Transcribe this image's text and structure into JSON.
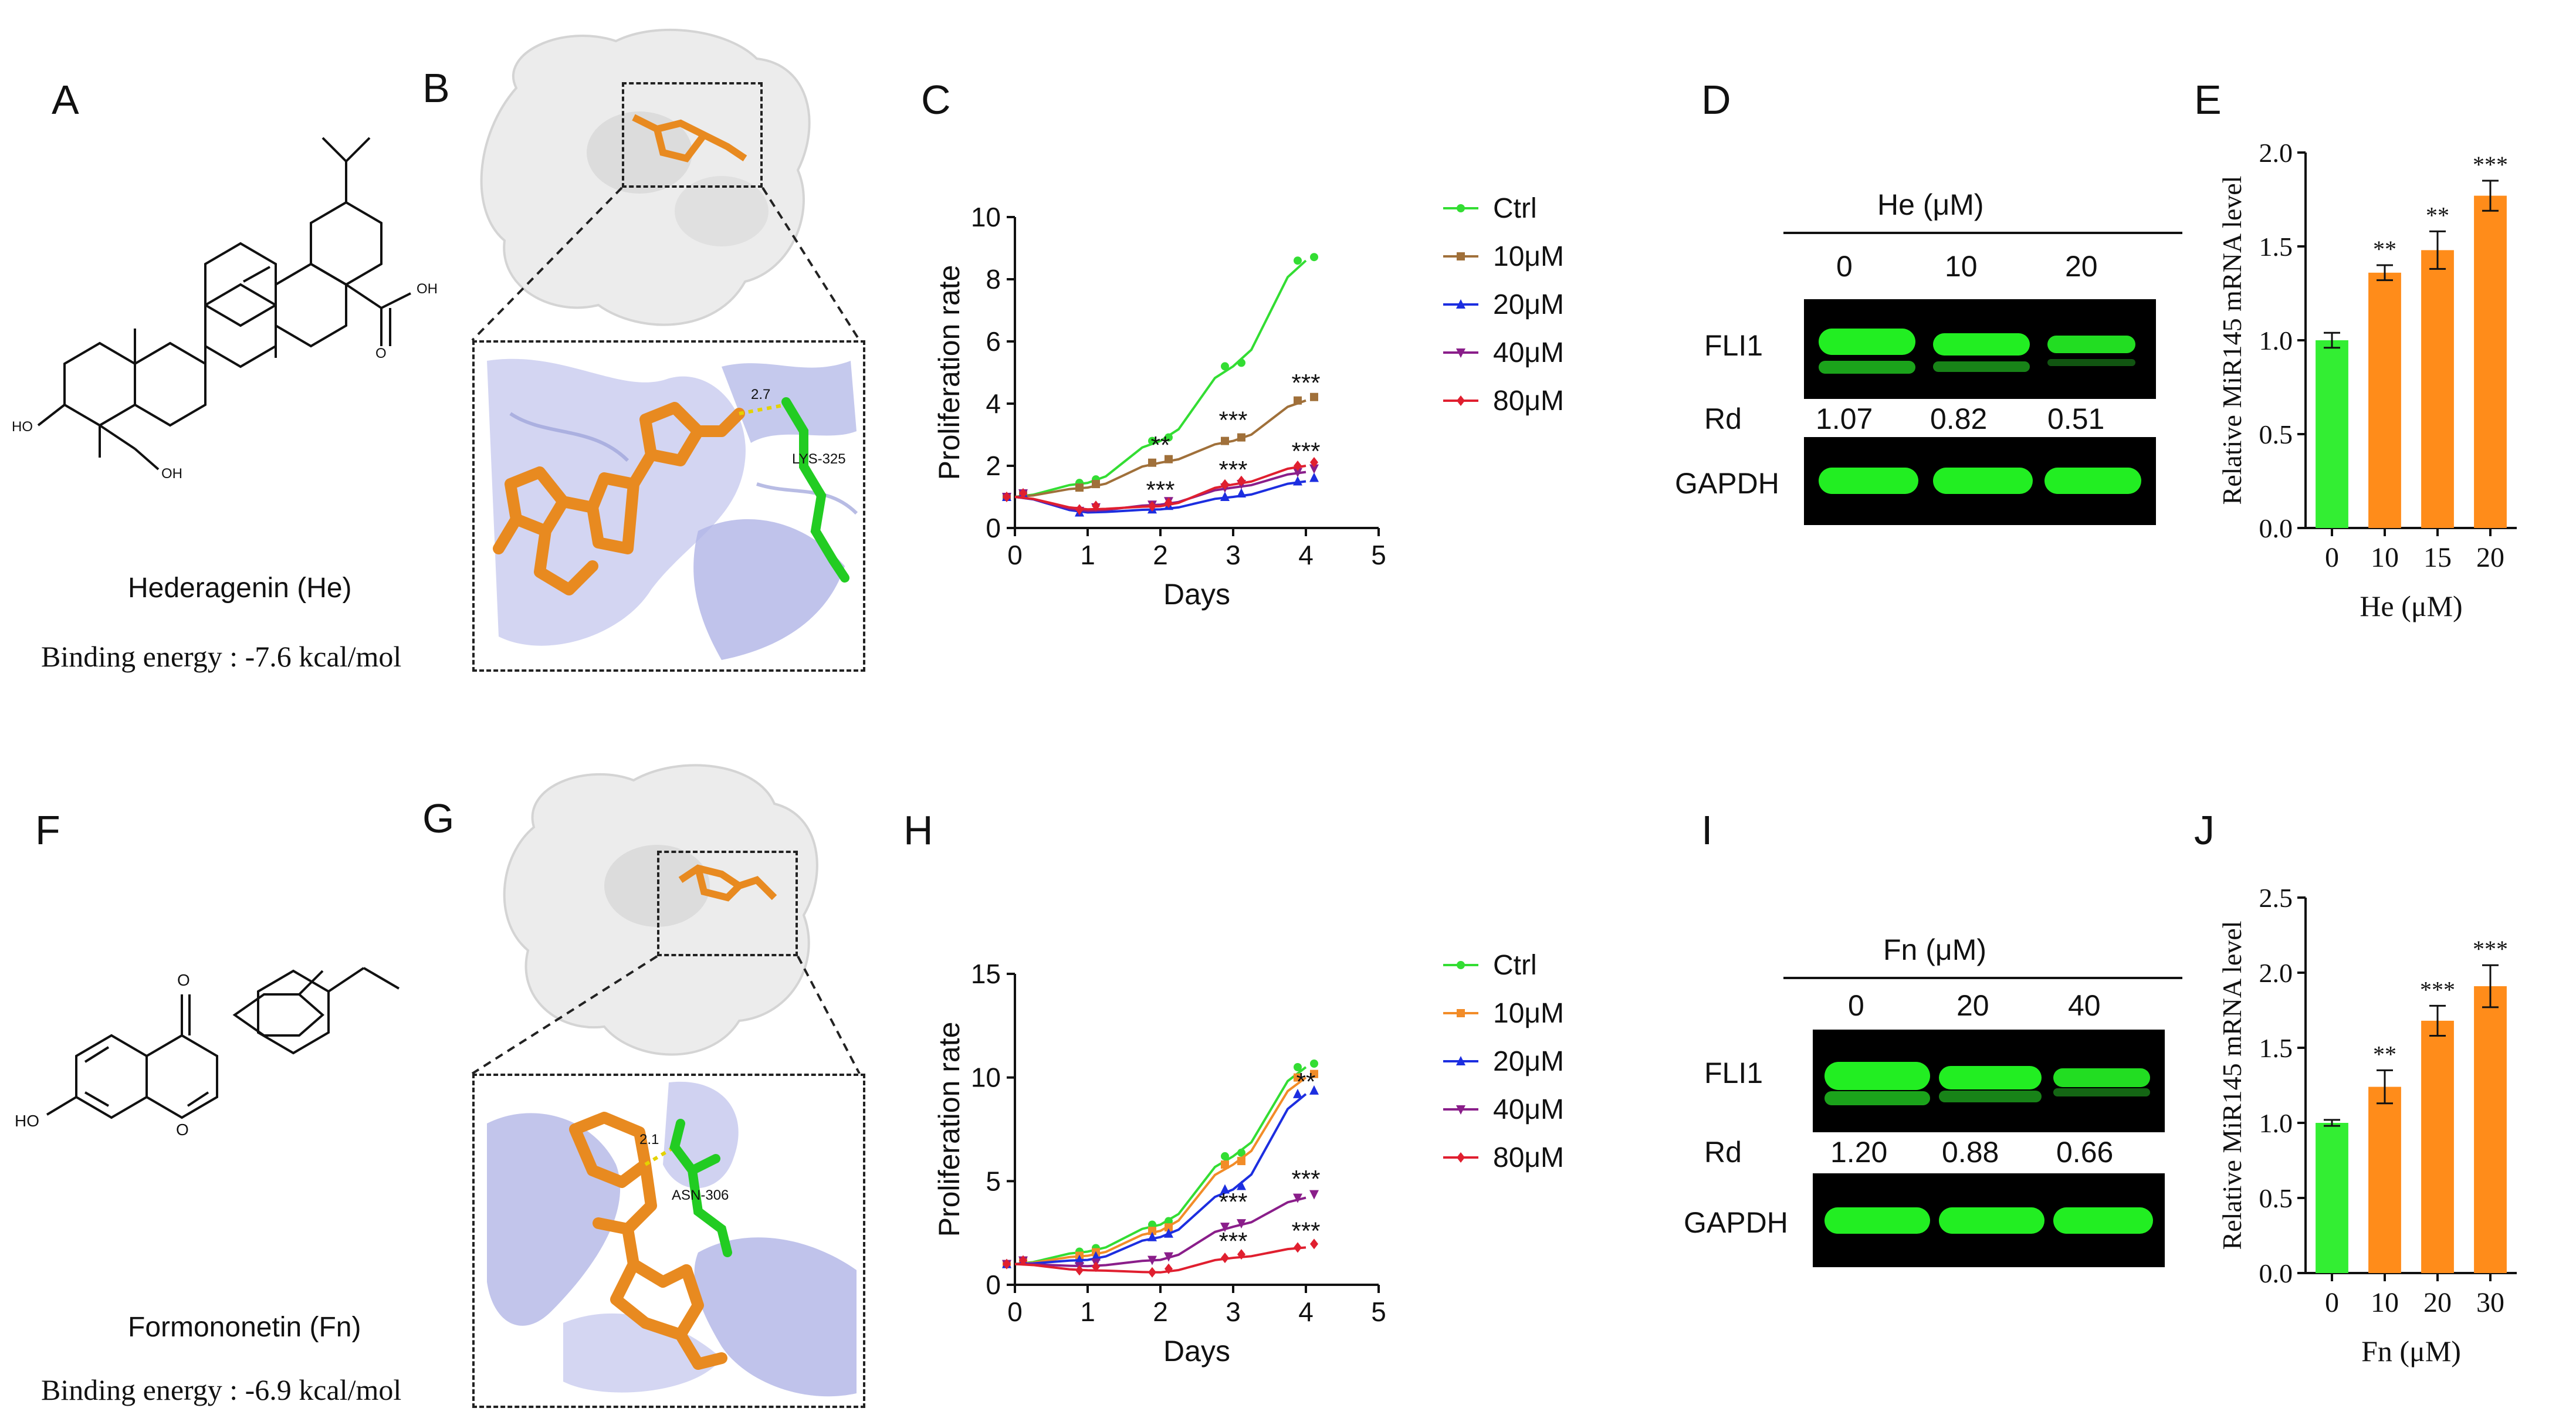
{
  "panels": {
    "A": {
      "letter": "A",
      "compound": "Hederagenin (He)",
      "binding": "Binding energy : -7.6 kcal/mol",
      "oh_labels": [
        "OH",
        "HO",
        "OH"
      ]
    },
    "B": {
      "letter": "B",
      "residue": "LYS-325",
      "distance": "2.7"
    },
    "C": {
      "letter": "C"
    },
    "D": {
      "letter": "D",
      "treatment": "He (μM)",
      "doses": [
        "0",
        "10",
        "20"
      ],
      "target": "FLI1",
      "rd_label": "Rd",
      "rd_values": [
        "1.07",
        "0.82",
        "0.51"
      ],
      "control": "GAPDH"
    },
    "E": {
      "letter": "E"
    },
    "F": {
      "letter": "F",
      "compound": "Formononetin (Fn)",
      "binding": "Binding energy : -6.9 kcal/mol",
      "atom_labels": [
        "O",
        "HO",
        "O"
      ]
    },
    "G": {
      "letter": "G",
      "residue": "ASN-306",
      "distance": "2.1"
    },
    "H": {
      "letter": "H"
    },
    "I": {
      "letter": "I",
      "treatment": "Fn (μM)",
      "doses": [
        "0",
        "20",
        "40"
      ],
      "target": "FLI1",
      "rd_label": "Rd",
      "rd_values": [
        "1.20",
        "0.88",
        "0.66"
      ],
      "control": "GAPDH"
    },
    "J": {
      "letter": "J"
    }
  },
  "colors": {
    "ctrl": "#33dd33",
    "c10_top": "#a0703a",
    "c10_bottom": "#f28c28",
    "c20": "#1c2ee0",
    "c40": "#8a1e8a",
    "c80": "#e01f2f",
    "bar_green": "#33ee33",
    "bar_orange": "#ff8c1a",
    "protein_surface": "#ececec",
    "cartoon": "#b8bce8",
    "ligand": "#e88a20",
    "blot_band": "#22ee22"
  },
  "chart_data": [
    {
      "panel": "C",
      "type": "line",
      "x": [
        0,
        1,
        2,
        3,
        4
      ],
      "xlabel": "Days",
      "ylabel": "Proliferation rate",
      "xlim": [
        0,
        5
      ],
      "ylim": [
        0,
        10
      ],
      "xticks": [
        "0",
        "1",
        "2",
        "3",
        "4",
        "5"
      ],
      "yticks": [
        "0",
        "2",
        "4",
        "6",
        "8",
        "10"
      ],
      "legend_position": "right",
      "series": [
        {
          "name": "Ctrl",
          "values": [
            1.0,
            1.45,
            2.8,
            5.2,
            8.6
          ]
        },
        {
          "name": "10μM",
          "values": [
            1.0,
            1.3,
            2.1,
            2.8,
            4.1
          ]
        },
        {
          "name": "20μM",
          "values": [
            1.0,
            0.5,
            0.6,
            1.0,
            1.5
          ]
        },
        {
          "name": "40μM",
          "values": [
            1.0,
            0.55,
            0.75,
            1.3,
            1.8
          ]
        },
        {
          "name": "80μM",
          "values": [
            1.0,
            0.6,
            0.7,
            1.4,
            2.0
          ]
        }
      ],
      "annotations": [
        {
          "x": 2,
          "y": 2.4,
          "text": "**"
        },
        {
          "x": 2,
          "y": 0.95,
          "text": "***"
        },
        {
          "x": 3,
          "y": 3.2,
          "text": "***"
        },
        {
          "x": 3,
          "y": 1.6,
          "text": "***"
        },
        {
          "x": 4,
          "y": 4.4,
          "text": "***"
        },
        {
          "x": 4,
          "y": 2.2,
          "text": "***"
        }
      ]
    },
    {
      "panel": "E",
      "type": "bar",
      "categories": [
        "0",
        "10",
        "15",
        "20"
      ],
      "values": [
        1.0,
        1.36,
        1.48,
        1.77
      ],
      "errors": [
        0.04,
        0.04,
        0.1,
        0.08
      ],
      "annotations": [
        "",
        "**",
        "**",
        "***"
      ],
      "xlabel": "He (μM)",
      "ylabel": "Relative MiR145 mRNA level",
      "ylim": [
        0,
        2.0
      ],
      "yticks": [
        "0.0",
        "0.5",
        "1.0",
        "1.5",
        "2.0"
      ]
    },
    {
      "panel": "H",
      "type": "line",
      "x": [
        0,
        1,
        2,
        3,
        4
      ],
      "xlabel": "Days",
      "ylabel": "Proliferation rate",
      "xlim": [
        0,
        5
      ],
      "ylim": [
        0,
        15
      ],
      "xticks": [
        "0",
        "1",
        "2",
        "3",
        "4",
        "5"
      ],
      "yticks": [
        "0",
        "5",
        "10",
        "15"
      ],
      "legend_position": "right",
      "series": [
        {
          "name": "Ctrl",
          "values": [
            1.0,
            1.6,
            2.9,
            6.2,
            10.5
          ]
        },
        {
          "name": "10μM",
          "values": [
            1.0,
            1.4,
            2.6,
            5.8,
            10.0
          ]
        },
        {
          "name": "20μM",
          "values": [
            1.0,
            1.2,
            2.3,
            4.6,
            9.2
          ]
        },
        {
          "name": "40μM",
          "values": [
            1.0,
            0.9,
            1.2,
            2.8,
            4.2
          ]
        },
        {
          "name": "80μM",
          "values": [
            1.0,
            0.7,
            0.6,
            1.3,
            1.8
          ]
        }
      ],
      "annotations": [
        {
          "x": 4,
          "y": 9.4,
          "text": "**"
        },
        {
          "x": 3,
          "y": 3.6,
          "text": "***"
        },
        {
          "x": 3,
          "y": 1.7,
          "text": "***"
        },
        {
          "x": 4,
          "y": 4.7,
          "text": "***"
        },
        {
          "x": 4,
          "y": 2.2,
          "text": "***"
        }
      ]
    },
    {
      "panel": "J",
      "type": "bar",
      "categories": [
        "0",
        "10",
        "20",
        "30"
      ],
      "values": [
        1.0,
        1.24,
        1.68,
        1.91
      ],
      "errors": [
        0.02,
        0.11,
        0.1,
        0.14
      ],
      "annotations": [
        "",
        "**",
        "***",
        "***"
      ],
      "xlabel": "Fn (μM)",
      "ylabel": "Relative MiR145 mRNA level",
      "ylim": [
        0,
        2.5
      ],
      "yticks": [
        "0.0",
        "0.5",
        "1.0",
        "1.5",
        "2.0",
        "2.5"
      ]
    }
  ]
}
